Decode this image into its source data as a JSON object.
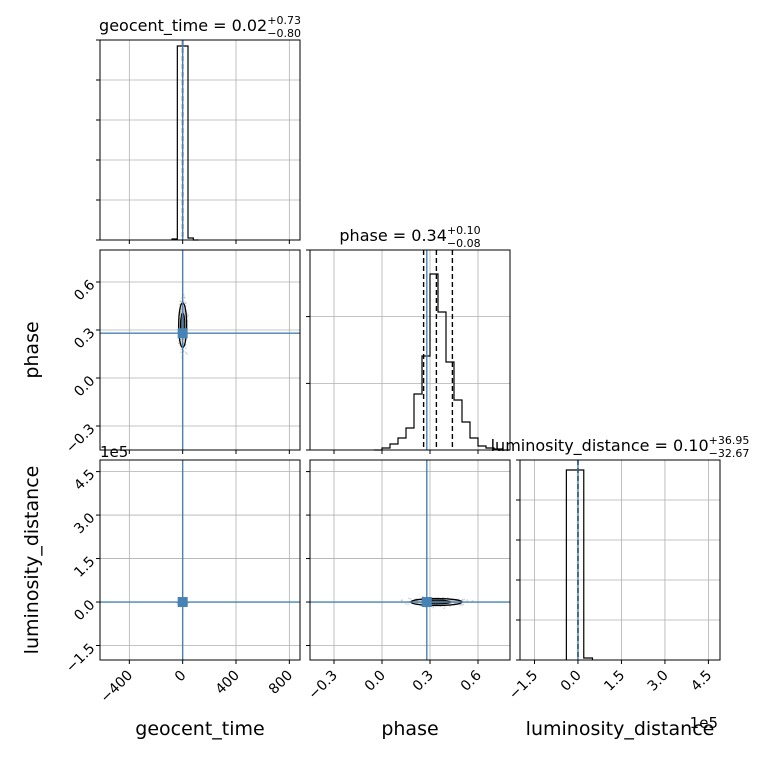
{
  "chart_data": {
    "type": "corner",
    "parameters": [
      "geocent_time",
      "phase",
      "luminosity_distance"
    ],
    "truth": {
      "geocent_time": 0,
      "phase": 0.28,
      "luminosity_distance": 0
    },
    "colors": {
      "truth": "#4682b4",
      "hist": "#000000",
      "grid": "#b0b0b0",
      "scatter": "#bdbdbd"
    },
    "titles": [
      {
        "name": "geocent_time",
        "median": "0.02",
        "plus": "+0.73",
        "minus": "−0.80"
      },
      {
        "name": "phase",
        "median": "0.34",
        "plus": "+0.10",
        "minus": "−0.08"
      },
      {
        "name": "luminosity_distance",
        "median": "0.10",
        "plus": "+36.95",
        "minus": "−32.67"
      }
    ],
    "axes": {
      "geocent_time": {
        "range": [
          -620,
          880
        ],
        "ticks": [
          -400,
          0,
          400,
          800
        ],
        "tick_labels": [
          "−400",
          "0",
          "400",
          "800"
        ],
        "grid": [
          -400,
          0,
          400,
          800
        ]
      },
      "phase": {
        "range": [
          -0.45,
          0.8
        ],
        "ticks": [
          -0.3,
          0.0,
          0.3,
          0.6
        ],
        "tick_labels": [
          "−0.3",
          "0.0",
          "0.3",
          "0.6"
        ],
        "grid": [
          -0.3,
          0.0,
          0.3,
          0.6
        ]
      },
      "luminosity_distance": {
        "range": [
          -200000,
          490000
        ],
        "ticks": [
          -150000,
          0,
          150000,
          300000,
          450000
        ],
        "tick_labels": [
          "−1.5",
          "0.0",
          "1.5",
          "3.0",
          "4.5"
        ],
        "offset_label": "1e5",
        "grid": [
          -150000,
          0,
          150000,
          300000,
          450000
        ]
      }
    },
    "diag_y_grid": {
      "geocent_time": [
        0.0,
        0.2,
        0.4,
        0.6,
        0.8,
        1.0
      ],
      "phase": [
        0.0,
        0.333,
        0.667,
        1.0
      ],
      "luminosity_distance": [
        0.0,
        0.2,
        0.4,
        0.6,
        0.8,
        1.0
      ]
    },
    "histograms": {
      "geocent_time": {
        "edges": [
          -80,
          -40,
          0,
          40,
          80,
          120
        ],
        "counts": [
          0.005,
          0.97,
          0.97,
          0.01,
          0.0
        ],
        "quantiles": [
          -0.78,
          0.02,
          0.75
        ]
      },
      "phase": {
        "edges": [
          -0.05,
          0.0,
          0.05,
          0.1,
          0.15,
          0.2,
          0.25,
          0.3,
          0.35,
          0.4,
          0.45,
          0.5,
          0.55,
          0.6,
          0.65,
          0.7,
          0.75,
          0.8
        ],
        "counts": [
          0.0,
          0.01,
          0.03,
          0.06,
          0.11,
          0.28,
          0.47,
          0.88,
          0.69,
          0.44,
          0.25,
          0.14,
          0.06,
          0.02,
          0.01,
          0.005,
          0.0
        ],
        "quantiles": [
          0.26,
          0.34,
          0.44
        ]
      },
      "luminosity_distance": {
        "edges": [
          -40000,
          -10000,
          20000,
          50000
        ],
        "counts": [
          0.95,
          0.95,
          0.01
        ],
        "quantiles": [
          -32.57,
          0.1,
          37.05
        ]
      }
    },
    "contours": [
      {
        "x": "geocent_time",
        "y": "phase",
        "center": [
          0,
          0.33
        ],
        "spread": [
          25,
          0.14
        ]
      },
      {
        "x": "geocent_time",
        "y": "luminosity_distance",
        "center": [
          0,
          0
        ],
        "spread": [
          30,
          9000
        ]
      },
      {
        "x": "phase",
        "y": "luminosity_distance",
        "center": [
          0.34,
          0
        ],
        "spread": [
          0.16,
          12000
        ]
      }
    ]
  }
}
